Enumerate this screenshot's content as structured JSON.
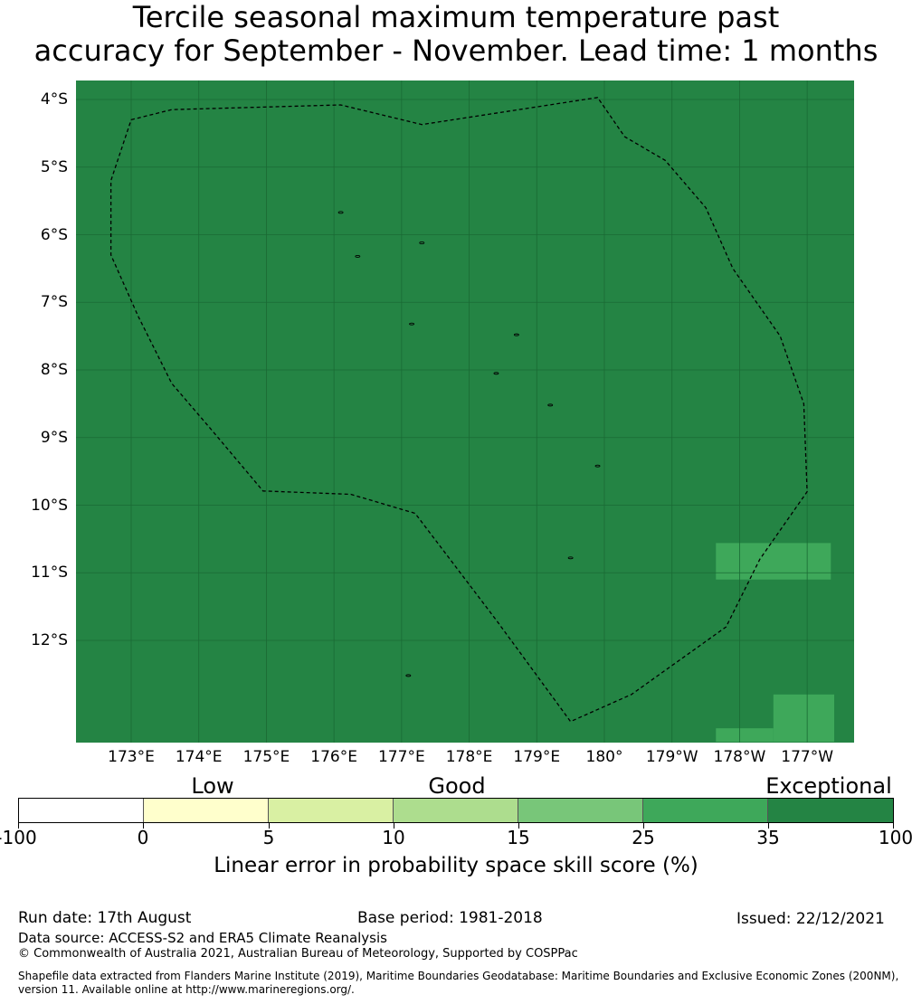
{
  "title": {
    "line1": "Tercile seasonal maximum temperature past",
    "line2": "accuracy for September - November. Lead time: 1 months"
  },
  "map": {
    "latitude_labels": [
      "4°S",
      "5°S",
      "6°S",
      "7°S",
      "8°S",
      "9°S",
      "10°S",
      "11°S",
      "12°S"
    ],
    "longitude_labels": [
      "173°E",
      "174°E",
      "175°E",
      "176°E",
      "177°E",
      "178°E",
      "179°E",
      "180°",
      "179°W",
      "178°W",
      "177°W"
    ],
    "background_color": "#248444",
    "patch_color": "#3ea85a",
    "grid_color": "#1a6a34",
    "boundary_style": "dashed black line (maritime boundary)",
    "extent": {
      "lon_min": 172.2,
      "lon_max": 183.4,
      "lat_min": -13.5,
      "lat_max": -3.75
    },
    "boundary_lonlat": [
      [
        173.0,
        -4.3
      ],
      [
        173.6,
        -4.15
      ],
      [
        176.1,
        -4.08
      ],
      [
        177.3,
        -4.37
      ],
      [
        179.9,
        -3.97
      ],
      [
        180.3,
        -4.55
      ],
      [
        180.9,
        -4.9
      ],
      [
        181.5,
        -5.6
      ],
      [
        181.9,
        -6.5
      ],
      [
        182.6,
        -7.5
      ],
      [
        182.95,
        -8.5
      ],
      [
        183.0,
        -9.8
      ],
      [
        182.3,
        -10.8
      ],
      [
        181.8,
        -11.8
      ],
      [
        180.4,
        -12.8
      ],
      [
        179.5,
        -13.2
      ],
      [
        178.4,
        -11.7
      ],
      [
        177.2,
        -10.12
      ],
      [
        176.25,
        -9.84
      ],
      [
        174.95,
        -9.79
      ],
      [
        174.2,
        -8.9
      ],
      [
        173.6,
        -8.2
      ],
      [
        173.1,
        -7.2
      ],
      [
        172.7,
        -6.3
      ],
      [
        172.7,
        -5.2
      ],
      [
        173.0,
        -4.3
      ]
    ],
    "islands_lonlat": [
      [
        176.1,
        -5.67
      ],
      [
        176.35,
        -6.32
      ],
      [
        177.3,
        -6.12
      ],
      [
        177.15,
        -7.32
      ],
      [
        178.7,
        -7.48
      ],
      [
        178.4,
        -8.05
      ],
      [
        179.2,
        -8.52
      ],
      [
        179.9,
        -9.42
      ],
      [
        179.5,
        -10.78
      ],
      [
        177.1,
        -12.52
      ]
    ],
    "patches_lonlat": [
      {
        "lon": [
          181.65,
          183.35
        ],
        "lat": [
          -10.56,
          -11.1
        ]
      },
      {
        "lon": [
          182.5,
          183.4
        ],
        "lat": [
          -12.8,
          -13.5
        ]
      },
      {
        "lon": [
          181.65,
          182.5
        ],
        "lat": [
          -13.3,
          -13.5
        ]
      }
    ]
  },
  "colorbar": {
    "categories": [
      "Low",
      "Good",
      "Exceptional"
    ],
    "ticks": [
      "-100",
      "0",
      "5",
      "10",
      "15",
      "25",
      "35",
      "100"
    ],
    "segment_colors": [
      "#ffffff",
      "#ffffcc",
      "#d9f0a3",
      "#addd8e",
      "#78c679",
      "#3ea85a",
      "#248444"
    ],
    "label": "Linear error in probability space skill score (%)"
  },
  "footer": {
    "run_date": "Run date: 17th August",
    "base_period": "Base period: 1981-2018",
    "issued": "Issued: 22/12/2021",
    "data_source": "Data source: ACCESS-S2 and ERA5 Climate Reanalysis",
    "copyright": "© Commonwealth of Australia 2021, Australian Bureau of Meteorology, Supported by COSPPac",
    "shapefile_line1": "Shapefile data extracted from Flanders Marine Institute (2019), Maritime Boundaries Geodatabase: Maritime Boundaries and Exclusive Economic Zones (200NM),",
    "shapefile_line2": "version 11. Available online at http://www.marineregions.org/."
  }
}
